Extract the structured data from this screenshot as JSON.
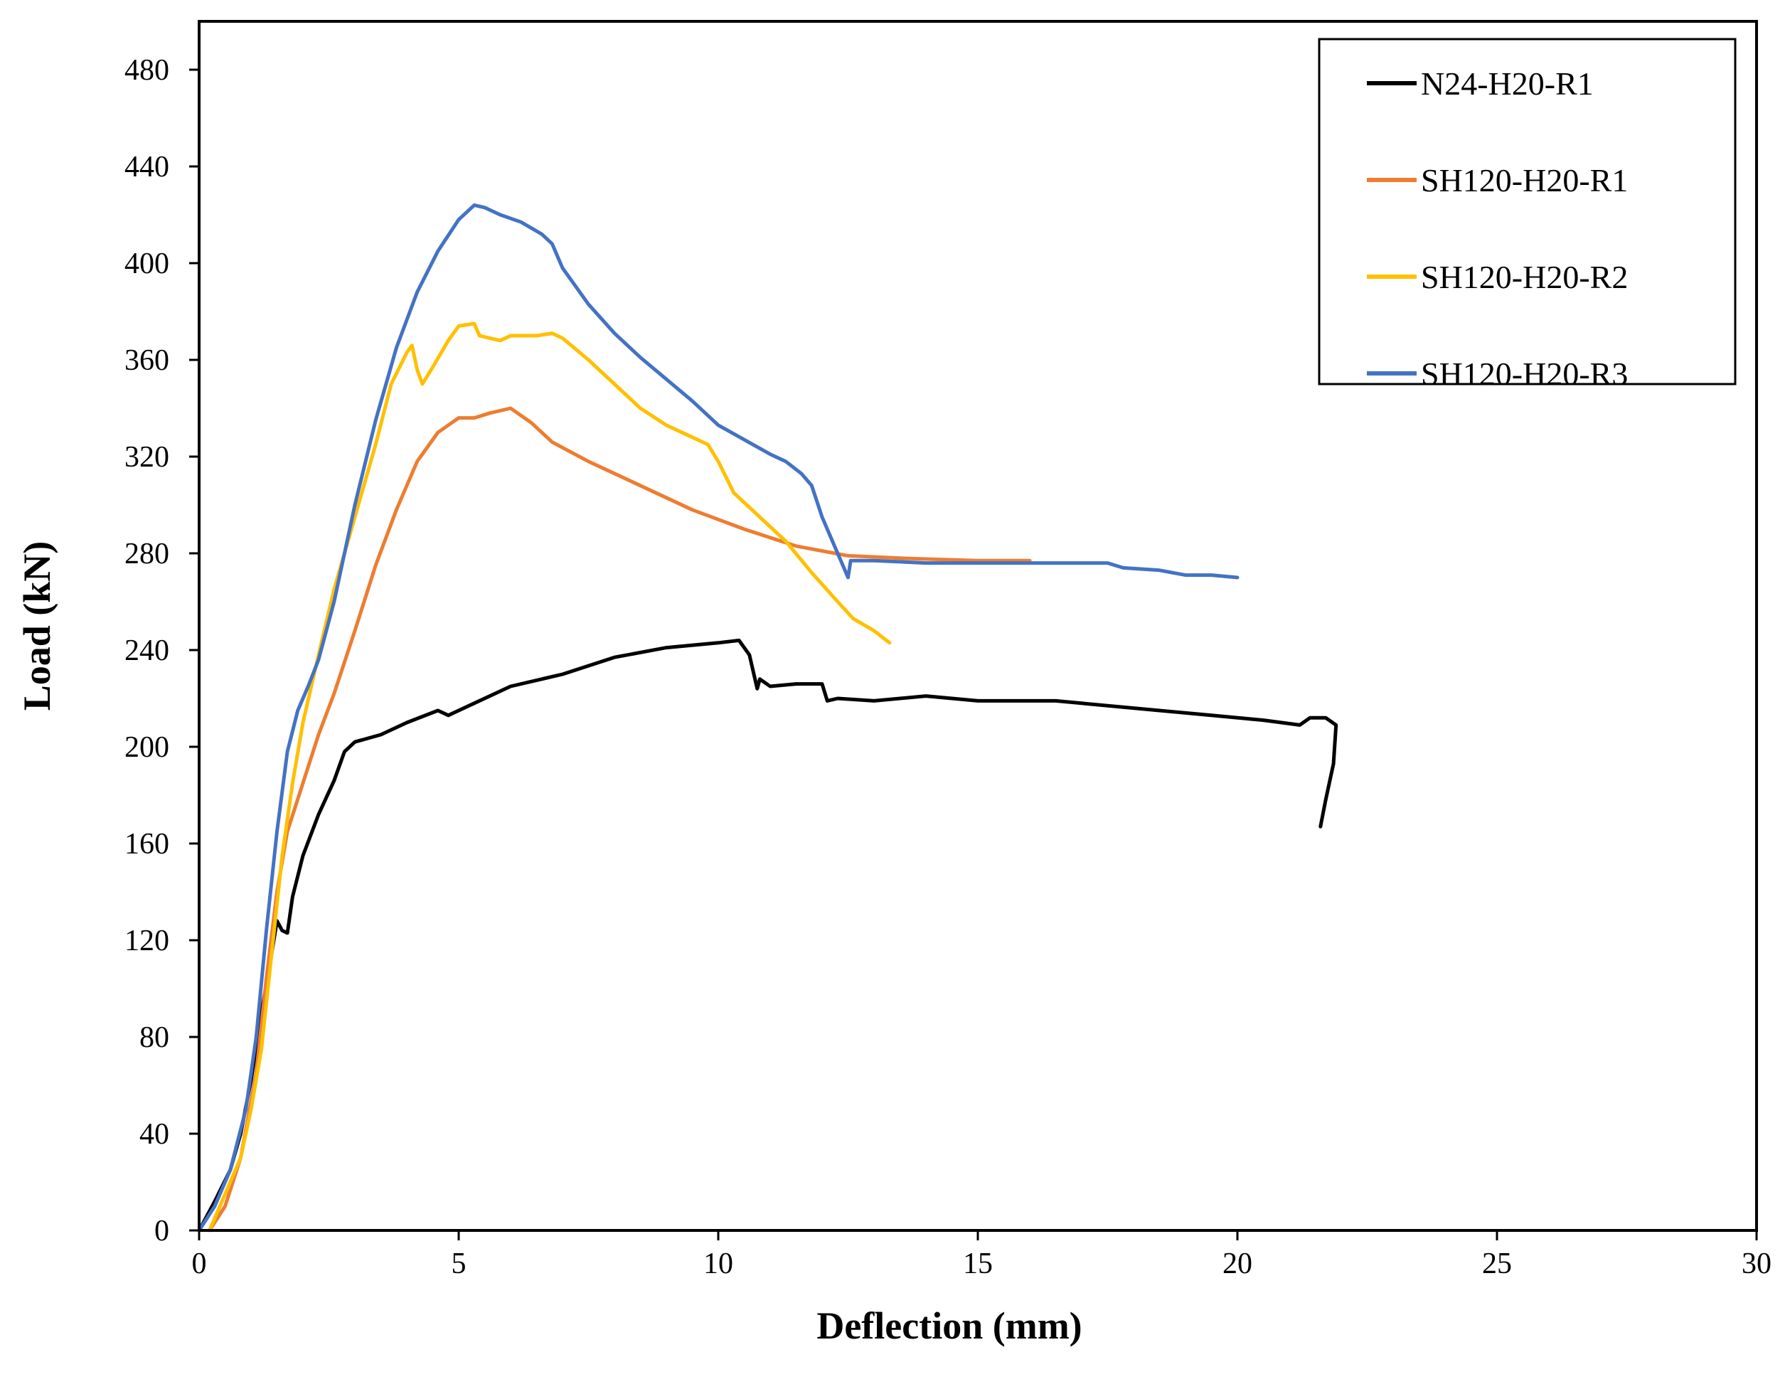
{
  "chart_data": {
    "type": "line",
    "title": "",
    "xlabel": "Deflection (mm)",
    "ylabel": "Load (kN)",
    "xlim": [
      0,
      30
    ],
    "ylim": [
      0,
      500
    ],
    "xticks": [
      0,
      5,
      10,
      15,
      20,
      25,
      30
    ],
    "yticks": [
      0,
      40,
      80,
      120,
      160,
      200,
      240,
      280,
      320,
      360,
      400,
      440,
      480
    ],
    "grid": false,
    "legend_position": "top-right",
    "series": [
      {
        "name": "N24-H20-R1",
        "color": "#000000",
        "points": [
          [
            0,
            0
          ],
          [
            0.3,
            12
          ],
          [
            0.6,
            25
          ],
          [
            0.8,
            40
          ],
          [
            1.0,
            62
          ],
          [
            1.2,
            90
          ],
          [
            1.4,
            115
          ],
          [
            1.5,
            128
          ],
          [
            1.6,
            124
          ],
          [
            1.7,
            123
          ],
          [
            1.8,
            138
          ],
          [
            2.0,
            155
          ],
          [
            2.3,
            172
          ],
          [
            2.6,
            186
          ],
          [
            2.8,
            198
          ],
          [
            3.0,
            202
          ],
          [
            3.5,
            205
          ],
          [
            4.0,
            210
          ],
          [
            4.6,
            215
          ],
          [
            4.8,
            213
          ],
          [
            5.2,
            217
          ],
          [
            6.0,
            225
          ],
          [
            7.0,
            230
          ],
          [
            8.0,
            237
          ],
          [
            9.0,
            241
          ],
          [
            10.0,
            243
          ],
          [
            10.4,
            244
          ],
          [
            10.6,
            238
          ],
          [
            10.75,
            224
          ],
          [
            10.8,
            228
          ],
          [
            11.0,
            225
          ],
          [
            11.5,
            226
          ],
          [
            12.0,
            226
          ],
          [
            12.1,
            219
          ],
          [
            12.3,
            220
          ],
          [
            13.0,
            219
          ],
          [
            14.0,
            221
          ],
          [
            15.0,
            219
          ],
          [
            16.5,
            219
          ],
          [
            18.0,
            216
          ],
          [
            19.5,
            213
          ],
          [
            20.5,
            211
          ],
          [
            21.2,
            209
          ],
          [
            21.4,
            212
          ],
          [
            21.7,
            212
          ],
          [
            21.9,
            209
          ],
          [
            21.85,
            193
          ],
          [
            21.7,
            178
          ],
          [
            21.6,
            167
          ]
        ]
      },
      {
        "name": "SH120-H20-R1",
        "color": "#ED7D31",
        "points": [
          [
            0.2,
            0
          ],
          [
            0.5,
            10
          ],
          [
            0.8,
            30
          ],
          [
            1.1,
            65
          ],
          [
            1.3,
            105
          ],
          [
            1.5,
            140
          ],
          [
            1.7,
            165
          ],
          [
            2.0,
            185
          ],
          [
            2.3,
            205
          ],
          [
            2.6,
            222
          ],
          [
            3.0,
            248
          ],
          [
            3.4,
            275
          ],
          [
            3.8,
            298
          ],
          [
            4.2,
            318
          ],
          [
            4.6,
            330
          ],
          [
            5.0,
            336
          ],
          [
            5.3,
            336
          ],
          [
            5.6,
            338
          ],
          [
            6.0,
            340
          ],
          [
            6.4,
            334
          ],
          [
            6.8,
            326
          ],
          [
            7.5,
            318
          ],
          [
            8.5,
            308
          ],
          [
            9.5,
            298
          ],
          [
            10.5,
            290
          ],
          [
            11.5,
            283
          ],
          [
            12.5,
            279
          ],
          [
            13.5,
            278
          ],
          [
            15.0,
            277
          ],
          [
            16.0,
            277
          ]
        ]
      },
      {
        "name": "SH120-H20-R2",
        "color": "#FFC000",
        "points": [
          [
            0.2,
            0
          ],
          [
            0.5,
            15
          ],
          [
            0.8,
            30
          ],
          [
            1.0,
            50
          ],
          [
            1.2,
            75
          ],
          [
            1.4,
            115
          ],
          [
            1.6,
            155
          ],
          [
            1.8,
            185
          ],
          [
            2.0,
            210
          ],
          [
            2.3,
            238
          ],
          [
            2.6,
            265
          ],
          [
            3.0,
            295
          ],
          [
            3.4,
            325
          ],
          [
            3.7,
            350
          ],
          [
            4.0,
            363
          ],
          [
            4.1,
            366
          ],
          [
            4.2,
            356
          ],
          [
            4.3,
            350
          ],
          [
            4.5,
            357
          ],
          [
            4.8,
            368
          ],
          [
            5.0,
            374
          ],
          [
            5.3,
            375
          ],
          [
            5.4,
            370
          ],
          [
            5.6,
            369
          ],
          [
            5.8,
            368
          ],
          [
            6.0,
            370
          ],
          [
            6.5,
            370
          ],
          [
            6.8,
            371
          ],
          [
            7.0,
            369
          ],
          [
            7.5,
            360
          ],
          [
            8.0,
            350
          ],
          [
            8.5,
            340
          ],
          [
            9.0,
            333
          ],
          [
            9.5,
            328
          ],
          [
            9.8,
            325
          ],
          [
            10.0,
            318
          ],
          [
            10.3,
            305
          ],
          [
            10.8,
            295
          ],
          [
            11.3,
            285
          ],
          [
            11.8,
            272
          ],
          [
            12.3,
            260
          ],
          [
            12.6,
            253
          ],
          [
            13.0,
            248
          ],
          [
            13.3,
            243
          ]
        ]
      },
      {
        "name": "SH120-H20-R3",
        "color": "#4472C4",
        "points": [
          [
            0,
            0
          ],
          [
            0.3,
            10
          ],
          [
            0.6,
            25
          ],
          [
            0.9,
            50
          ],
          [
            1.1,
            80
          ],
          [
            1.3,
            125
          ],
          [
            1.5,
            165
          ],
          [
            1.7,
            198
          ],
          [
            1.9,
            215
          ],
          [
            2.1,
            225
          ],
          [
            2.3,
            236
          ],
          [
            2.6,
            260
          ],
          [
            3.0,
            300
          ],
          [
            3.4,
            335
          ],
          [
            3.8,
            365
          ],
          [
            4.2,
            388
          ],
          [
            4.6,
            405
          ],
          [
            5.0,
            418
          ],
          [
            5.3,
            424
          ],
          [
            5.5,
            423
          ],
          [
            5.8,
            420
          ],
          [
            6.2,
            417
          ],
          [
            6.6,
            412
          ],
          [
            6.8,
            408
          ],
          [
            7.0,
            398
          ],
          [
            7.5,
            383
          ],
          [
            8.0,
            371
          ],
          [
            8.5,
            361
          ],
          [
            9.0,
            352
          ],
          [
            9.5,
            343
          ],
          [
            10.0,
            333
          ],
          [
            10.5,
            327
          ],
          [
            11.0,
            321
          ],
          [
            11.3,
            318
          ],
          [
            11.6,
            313
          ],
          [
            11.8,
            308
          ],
          [
            12.0,
            295
          ],
          [
            12.3,
            280
          ],
          [
            12.5,
            270
          ],
          [
            12.55,
            277
          ],
          [
            13.0,
            277
          ],
          [
            14.0,
            276
          ],
          [
            15.5,
            276
          ],
          [
            16.5,
            276
          ],
          [
            17.5,
            276
          ],
          [
            17.8,
            274
          ],
          [
            18.5,
            273
          ],
          [
            19.0,
            271
          ],
          [
            19.5,
            271
          ],
          [
            20.0,
            270
          ]
        ]
      }
    ]
  }
}
